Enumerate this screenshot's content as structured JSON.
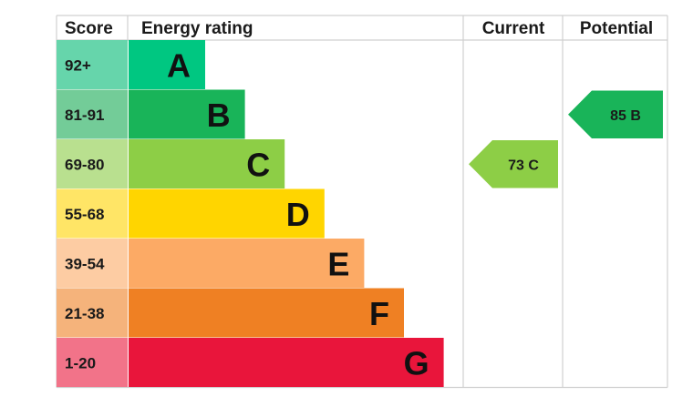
{
  "headers": {
    "score": "Score",
    "energy_rating": "Energy rating",
    "current": "Current",
    "potential": "Potential"
  },
  "chart_data": {
    "type": "bar",
    "bands": [
      {
        "letter": "A",
        "score": "92+",
        "color": "#00c781",
        "score_bg": "#66d5ab"
      },
      {
        "letter": "B",
        "score": "81-91",
        "color": "#19b459",
        "score_bg": "#73cc98"
      },
      {
        "letter": "C",
        "score": "69-80",
        "color": "#8dce46",
        "score_bg": "#b9e08f"
      },
      {
        "letter": "D",
        "score": "55-68",
        "color": "#ffd500",
        "score_bg": "#ffe566"
      },
      {
        "letter": "E",
        "score": "39-54",
        "color": "#fcaa65",
        "score_bg": "#fdcca3"
      },
      {
        "letter": "F",
        "score": "21-38",
        "color": "#ef8023",
        "score_bg": "#f5b37b"
      },
      {
        "letter": "G",
        "score": "1-20",
        "color": "#e9153b",
        "score_bg": "#f27389"
      }
    ],
    "current": {
      "value": 73,
      "band": "C",
      "label": "73 C",
      "color": "#8dce46"
    },
    "potential": {
      "value": 85,
      "band": "B",
      "label": "85 B",
      "color": "#19b459"
    }
  }
}
